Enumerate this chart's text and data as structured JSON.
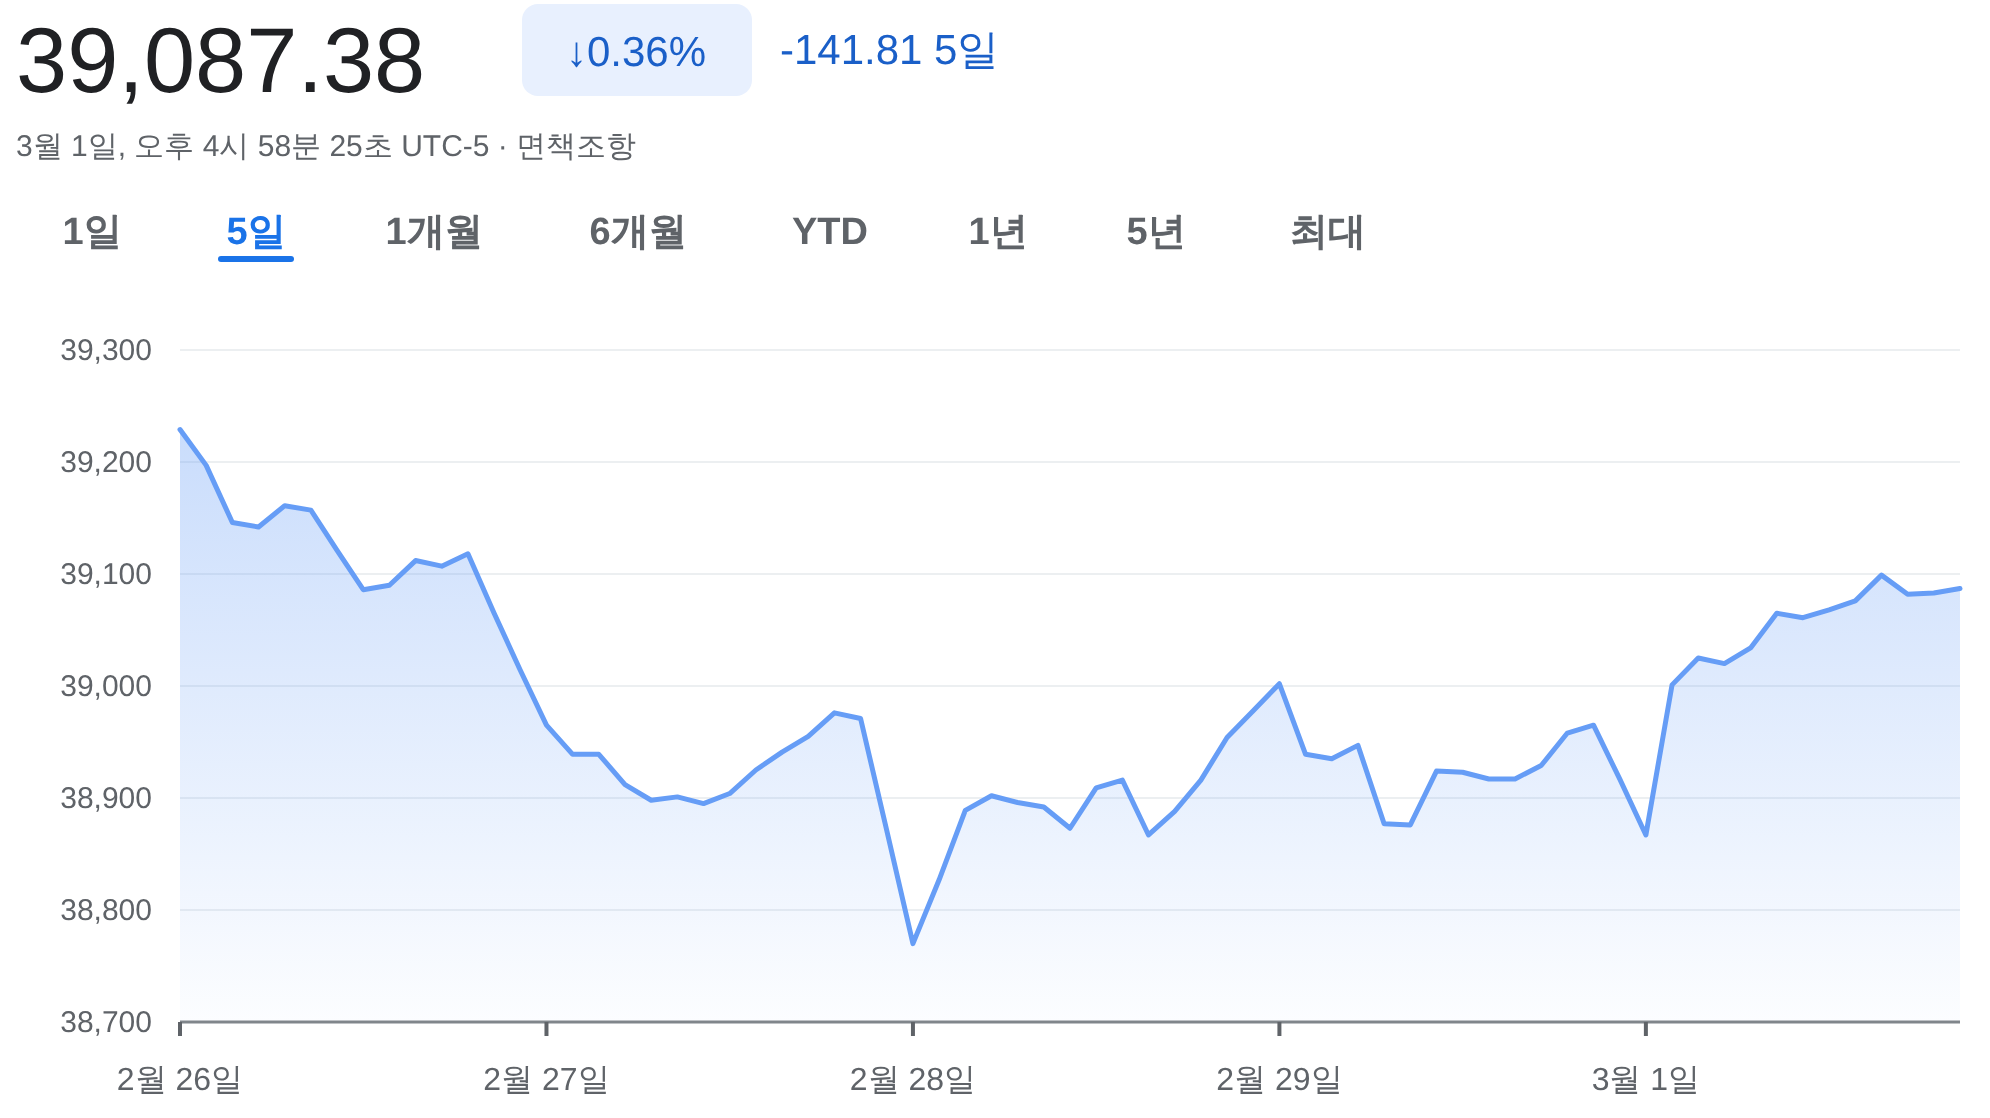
{
  "chart_data": {
    "type": "area",
    "title": "39,087.38",
    "subtitle": "3월 1일, 오후 4시 58분 25초 UTC-5 · 면책조항",
    "annotations": [
      "↓0.36%",
      "-141.81 5일",
      "1일",
      "5일",
      "1개월",
      "6개월",
      "YTD",
      "1년",
      "5년",
      "최대"
    ],
    "series": [
      {
        "color": "#669df6",
        "values": [
          39229,
          39197,
          39146,
          39142,
          39161,
          39157,
          39121,
          39086,
          39090,
          39112,
          39107,
          39118,
          39065,
          39014,
          38965,
          38939,
          38939,
          38912,
          38898,
          38901,
          38895,
          38904,
          38925,
          38941,
          38955,
          38976,
          38971,
          38871,
          38770,
          38827,
          38889,
          38902,
          38896,
          38892,
          38873,
          38909,
          38916,
          38867,
          38888,
          38916,
          38954,
          38978,
          39002,
          38939,
          38935,
          38947,
          38877,
          38876,
          38924,
          38923,
          38917,
          38917,
          38929,
          38958,
          38965,
          38917,
          38867,
          39001,
          39025,
          39020,
          39034,
          39065,
          39061,
          39068,
          39076,
          39099,
          39082,
          39083,
          39087
        ]
      }
    ],
    "categories": [
      "2월 26일",
      null,
      null,
      null,
      null,
      null,
      null,
      null,
      null,
      null,
      null,
      null,
      null,
      null,
      "2월 27일",
      null,
      null,
      null,
      null,
      null,
      null,
      null,
      null,
      null,
      null,
      null,
      null,
      null,
      "2월 28일",
      null,
      null,
      null,
      null,
      null,
      null,
      null,
      null,
      null,
      null,
      null,
      null,
      null,
      "2월 29일",
      null,
      null,
      null,
      null,
      null,
      null,
      null,
      null,
      null,
      null,
      null,
      null,
      null,
      "3월 1일",
      null,
      null,
      null,
      null,
      null,
      null,
      null,
      null,
      null,
      null,
      null,
      null
    ],
    "ylim": [
      38700,
      39300
    ],
    "yticks": [
      {
        "value": 38700,
        "label": "38,700"
      },
      {
        "value": 38800,
        "label": "38,800"
      },
      {
        "value": 38900,
        "label": "38,900"
      },
      {
        "value": 39000,
        "label": "39,000"
      },
      {
        "value": 39100,
        "label": "39,100"
      },
      {
        "value": 39200,
        "label": "39,200"
      },
      {
        "value": 39300,
        "label": "39,300"
      }
    ],
    "grid": "y"
  }
}
